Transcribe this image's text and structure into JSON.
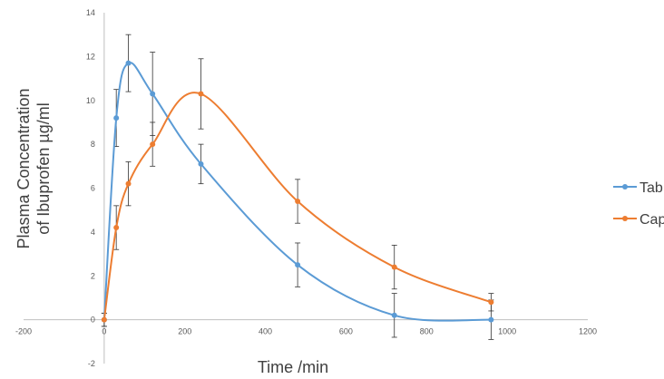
{
  "chart_data": {
    "type": "scatter",
    "title": "",
    "xlabel": "Time /min",
    "ylabel_lines": [
      "Plasma Concentration",
      "of Ibuprofen µg/ml"
    ],
    "xlim": [
      -200,
      1200
    ],
    "ylim": [
      -2,
      14
    ],
    "xticks": [
      -200,
      0,
      200,
      400,
      600,
      800,
      1000,
      1200
    ],
    "yticks": [
      -2,
      0,
      2,
      4,
      6,
      8,
      10,
      12,
      14
    ],
    "grid": false,
    "smooth_lines": true,
    "legend_position": "right",
    "series": [
      {
        "name": "Tab",
        "color": "#5b9bd5",
        "x": [
          0,
          30,
          60,
          120,
          240,
          480,
          720,
          960
        ],
        "y": [
          0,
          9.2,
          11.7,
          10.3,
          7.1,
          2.5,
          0.2,
          0
        ],
        "err": [
          0.3,
          1.3,
          1.3,
          1.9,
          0.9,
          1.0,
          1.0,
          0.9
        ]
      },
      {
        "name": "Cap",
        "color": "#ed7d31",
        "x": [
          0,
          30,
          60,
          120,
          240,
          480,
          720,
          960
        ],
        "y": [
          0,
          4.2,
          6.2,
          8.0,
          10.3,
          5.4,
          2.4,
          0.8
        ],
        "err": [
          0.3,
          1.0,
          1.0,
          1.0,
          1.6,
          1.0,
          1.0,
          0.4
        ]
      }
    ]
  }
}
